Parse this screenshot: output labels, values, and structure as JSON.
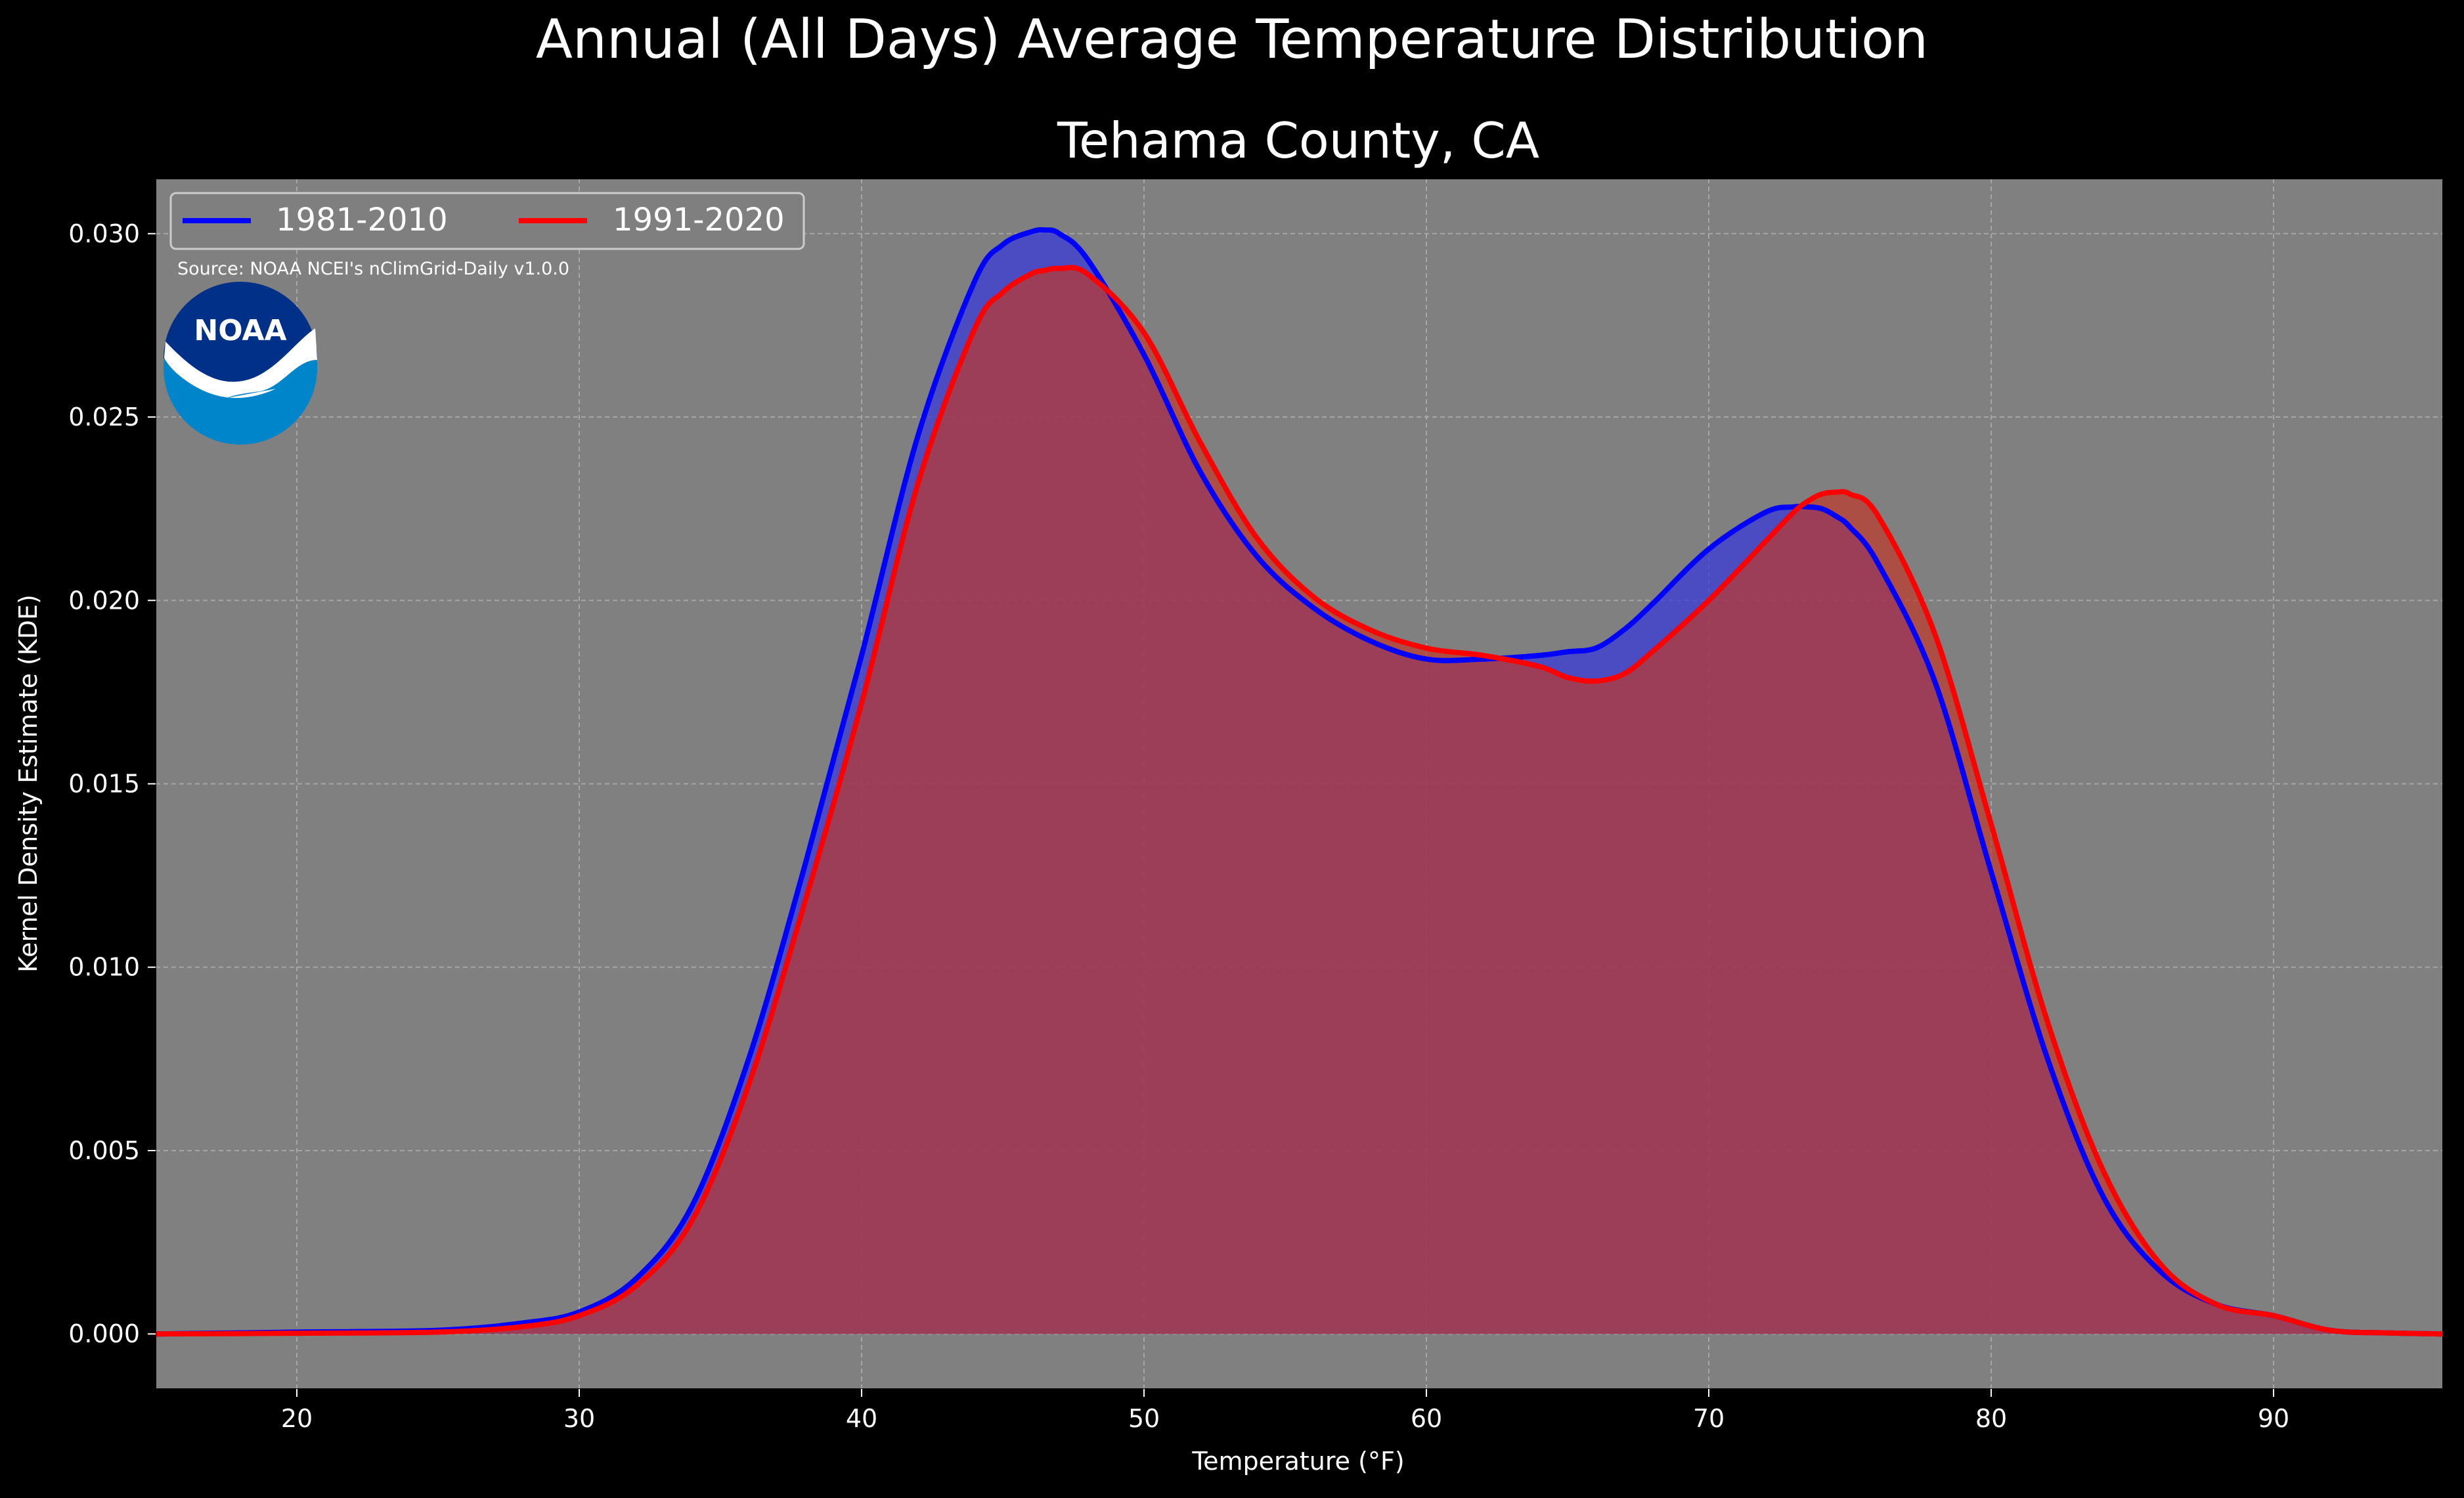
{
  "figure": {
    "suptitle": "Annual (All Days) Average Temperature Distribution",
    "background": "#000000"
  },
  "chart_data": {
    "type": "area",
    "title": "Tehama County, CA",
    "xlabel": "Temperature (°F)",
    "ylabel": "Kernel Density Estimate (KDE)",
    "xlim": [
      15,
      96
    ],
    "ylim": [
      -0.0015,
      0.0315
    ],
    "xticks": [
      20,
      30,
      40,
      50,
      60,
      70,
      80,
      90
    ],
    "yticks": [
      0.0,
      0.005,
      0.01,
      0.015,
      0.02,
      0.025,
      0.03
    ],
    "ytick_labels": [
      "0.000",
      "0.005",
      "0.010",
      "0.015",
      "0.020",
      "0.025",
      "0.030"
    ],
    "grid": true,
    "plot_background": "#808080",
    "legend": {
      "placement": "top-left",
      "columns": 2
    },
    "source_note": "Source: NOAA NCEI's nClimGrid-Daily v1.0.0",
    "logo_text": "NOAA",
    "x": [
      15,
      20,
      25,
      28,
      30,
      32,
      34,
      36,
      38,
      40,
      42,
      44,
      45,
      46,
      46.5,
      47,
      48,
      50,
      52,
      54,
      56,
      58,
      60,
      62,
      64,
      65,
      66,
      67,
      68,
      70,
      72,
      73,
      73.5,
      74,
      74.5,
      75,
      76,
      78,
      80,
      82,
      84,
      86,
      88,
      90,
      92,
      94,
      96
    ],
    "series": [
      {
        "name": "1981-2010",
        "color": "#0000ff",
        "fill": "#3a3ad8",
        "values": [
          0.0,
          5e-05,
          0.0001,
          0.0003,
          0.0006,
          0.0015,
          0.0035,
          0.0075,
          0.0128,
          0.0185,
          0.0245,
          0.0287,
          0.0297,
          0.03005,
          0.0301,
          0.03,
          0.0293,
          0.0267,
          0.0235,
          0.0212,
          0.0198,
          0.0189,
          0.0184,
          0.0184,
          0.0185,
          0.0186,
          0.0187,
          0.0192,
          0.0199,
          0.0214,
          0.0224,
          0.02255,
          0.02255,
          0.0225,
          0.0223,
          0.022,
          0.021,
          0.0178,
          0.0126,
          0.0075,
          0.0037,
          0.0017,
          0.0008,
          0.0005,
          0.0001,
          3e-05,
          0.0
        ]
      },
      {
        "name": "1991-2020",
        "color": "#ff0000",
        "fill": "#c0392b",
        "values": [
          0.0,
          2e-05,
          5e-05,
          0.0002,
          0.0005,
          0.0013,
          0.0031,
          0.0068,
          0.0118,
          0.0172,
          0.0232,
          0.0274,
          0.0284,
          0.0289,
          0.029,
          0.02905,
          0.0289,
          0.0273,
          0.0243,
          0.0217,
          0.0201,
          0.0192,
          0.0187,
          0.0185,
          0.0182,
          0.0179,
          0.0178,
          0.018,
          0.0186,
          0.02,
          0.0216,
          0.0224,
          0.0227,
          0.0229,
          0.02295,
          0.0229,
          0.0223,
          0.0191,
          0.0139,
          0.0085,
          0.0044,
          0.0019,
          0.0008,
          0.0005,
          0.0001,
          3e-05,
          0.0
        ]
      }
    ]
  }
}
